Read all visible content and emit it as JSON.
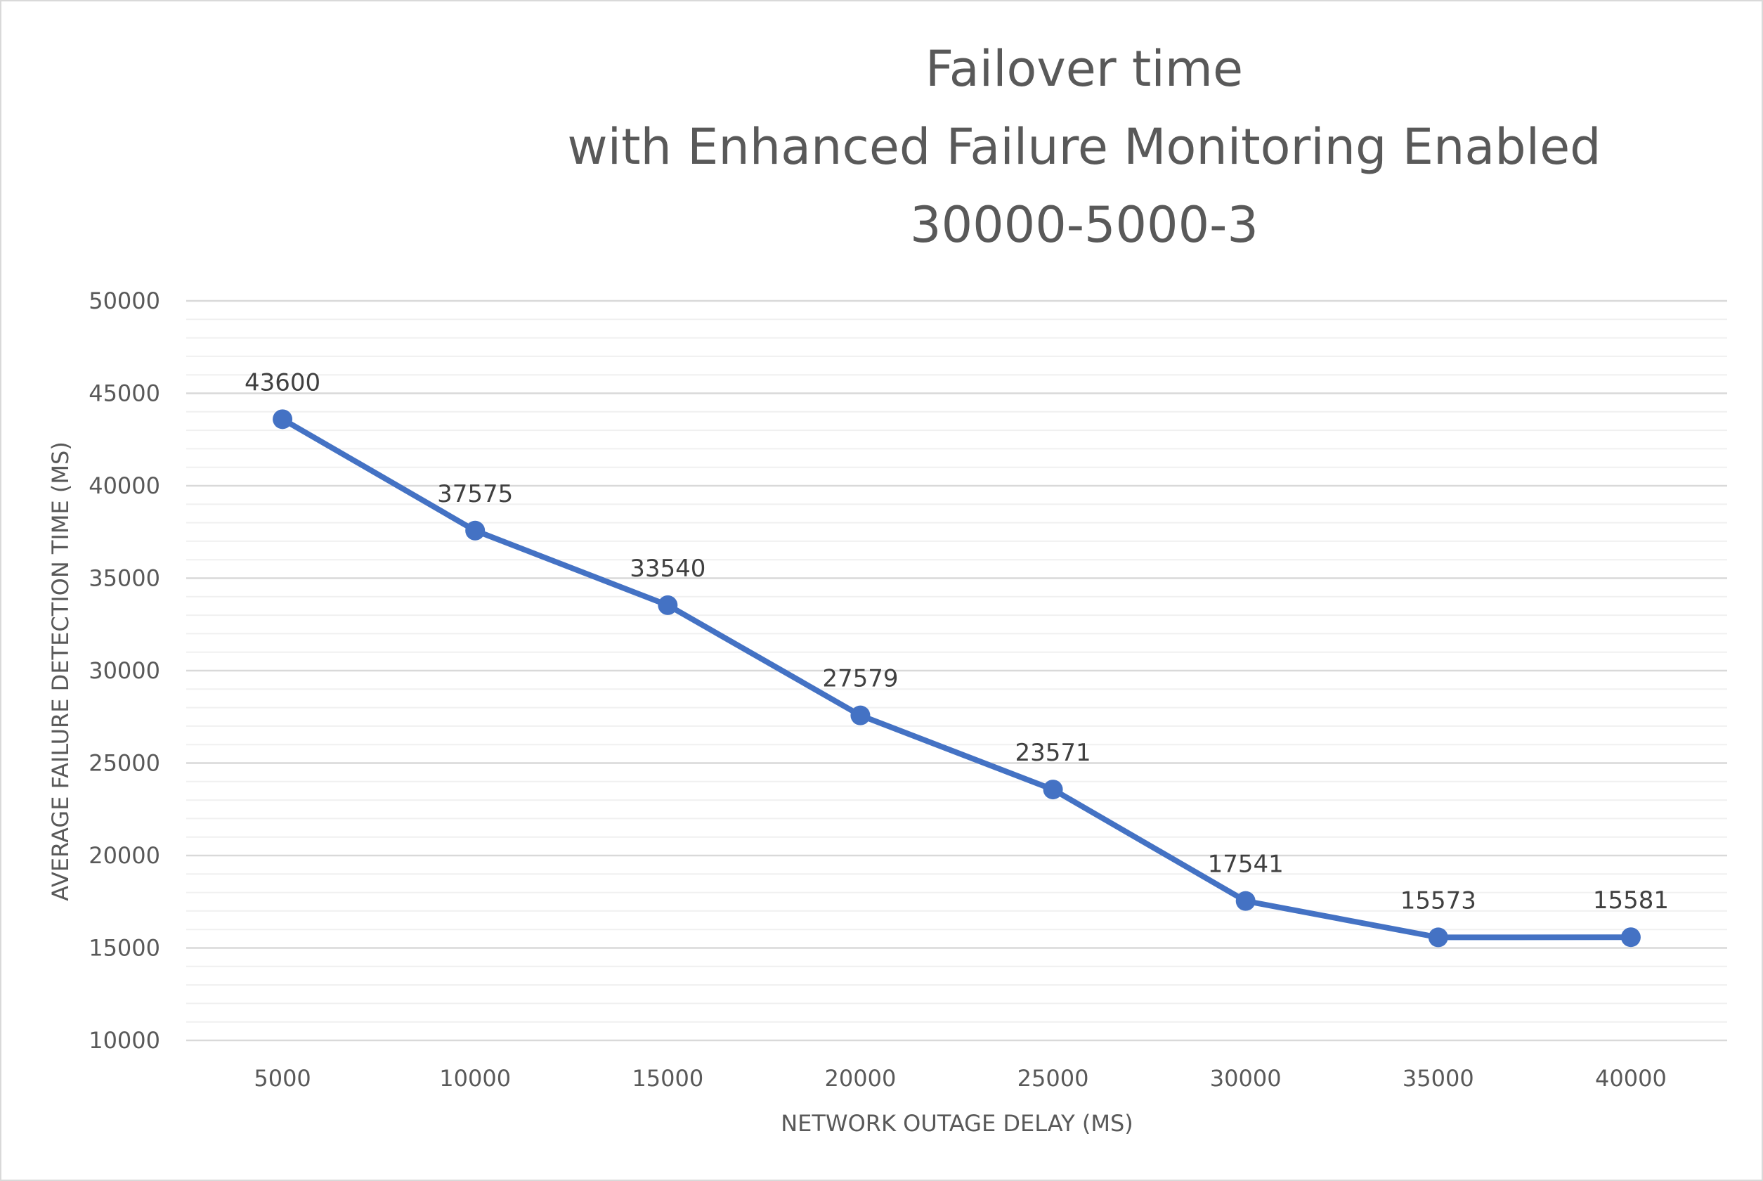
{
  "chart_data": {
    "type": "line",
    "title": [
      "Failover time",
      "with Enhanced Failure Monitoring Enabled",
      "30000-5000-3"
    ],
    "xlabel": "NETWORK OUTAGE DELAY (MS)",
    "ylabel": "AVERAGE FAILURE DETECTION TIME (MS)",
    "categories": [
      "5000",
      "10000",
      "15000",
      "20000",
      "25000",
      "30000",
      "35000",
      "40000"
    ],
    "series": [
      {
        "values": [
          43600,
          37575,
          33540,
          27579,
          23571,
          17541,
          15573,
          15581
        ]
      }
    ],
    "data_labels": [
      "43600",
      "37575",
      "33540",
      "27579",
      "23571",
      "17541",
      "15573",
      "15581"
    ],
    "ylim": [
      10000,
      50000
    ],
    "yticks": [
      "10000",
      "15000",
      "20000",
      "25000",
      "30000",
      "35000",
      "40000",
      "45000",
      "50000"
    ],
    "ymajor": 5000,
    "yminor": 1000,
    "grid": true,
    "legend": "none",
    "colors": {
      "line": "#4472c4",
      "grid_major": "#d9d9d9",
      "grid_minor": "#f0f0f0",
      "text": "#595959"
    }
  }
}
